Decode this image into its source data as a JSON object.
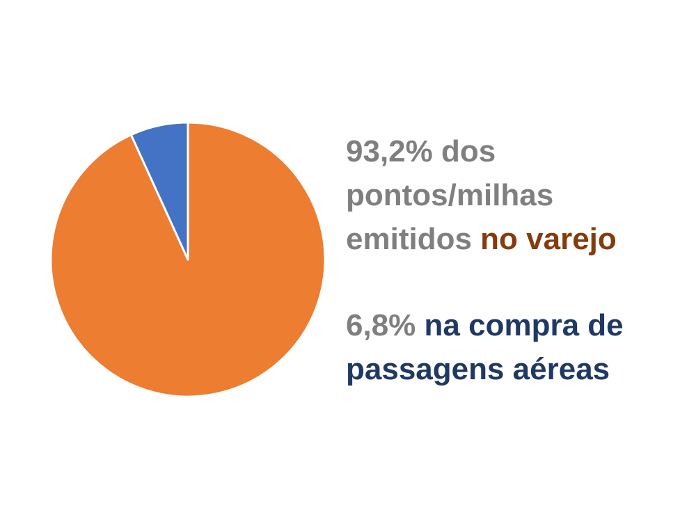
{
  "chart_data": {
    "type": "pie",
    "slices": [
      {
        "label": "no varejo",
        "value": 93.2,
        "color": "#ED7D31"
      },
      {
        "label": "na compra de passagens aéreas",
        "value": 6.8,
        "color": "#4472C4"
      }
    ],
    "start_angle_deg": 0,
    "direction": "clockwise"
  },
  "colors": {
    "gray_text": "#7F7F7F",
    "retail_text": "#843C0C",
    "air_text": "#1F3864",
    "slice_border": "#ffffff"
  },
  "legend": {
    "retail": {
      "pct": "93,2%",
      "line1_rest": " dos",
      "line2": "pontos/milhas",
      "line3_plain": "emitidos ",
      "highlight": "no varejo"
    },
    "air": {
      "pct": "6,8%",
      "line1_highlight": " na compra de",
      "line2_highlight": "passagens aéreas"
    }
  }
}
